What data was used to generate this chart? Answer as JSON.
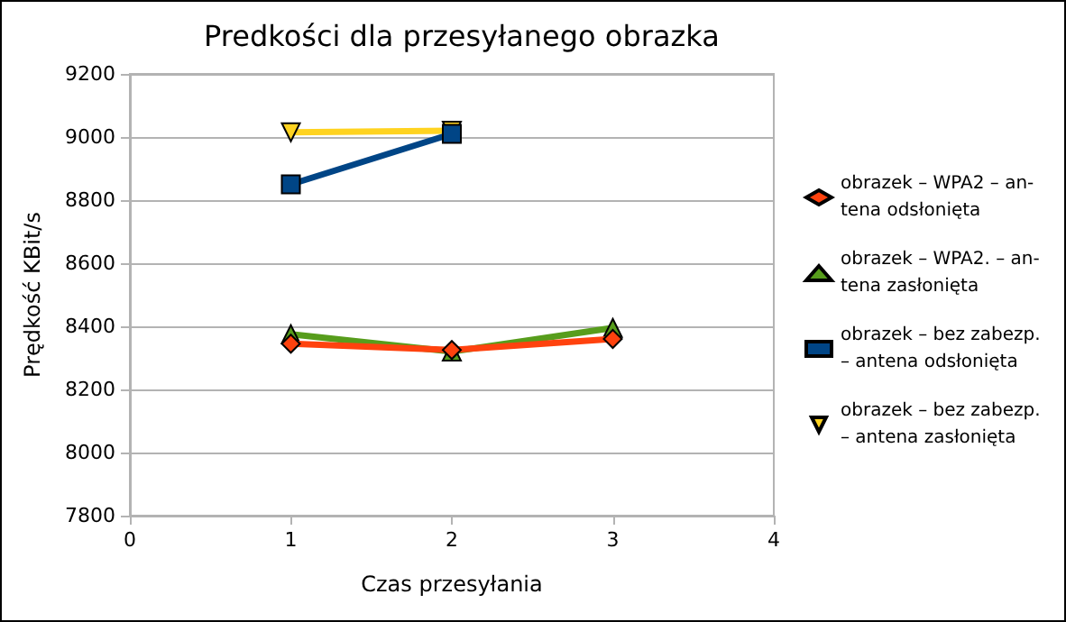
{
  "chart_data": {
    "type": "line",
    "title": "Predkości dla przesyłanego obrazka",
    "xlabel": "Czas przesyłania",
    "ylabel": "Prędkość KBit/s",
    "x": [
      1,
      2,
      3
    ],
    "series": [
      {
        "name": "obrazek – WPA2 – an-\ntena odsłonięta",
        "color": "#ff420e",
        "marker": "diamond",
        "values": [
          8345,
          8325,
          8360
        ]
      },
      {
        "name": "obrazek – WPA2. – an-\ntena zasłonięta",
        "color": "#579d1c",
        "marker": "triangle",
        "values": [
          8375,
          8320,
          8395
        ]
      },
      {
        "name": "obrazek – bez zabezp.\n– antena odsłonięta",
        "color": "#004586",
        "marker": "square",
        "values": [
          8850,
          9010,
          null
        ]
      },
      {
        "name": "obrazek – bez zabezp.\n– antena zasłonięta",
        "color": "#ffd320",
        "marker": "triangle-down",
        "values": [
          9015,
          9020,
          null
        ]
      }
    ],
    "xlim": [
      0,
      4
    ],
    "xticks": [
      0,
      1,
      2,
      3,
      4
    ],
    "ylim": [
      7800,
      9200
    ],
    "yticks": [
      7800,
      8000,
      8200,
      8400,
      8600,
      8800,
      9000,
      9200
    ],
    "grid": "y",
    "legend": "right"
  }
}
